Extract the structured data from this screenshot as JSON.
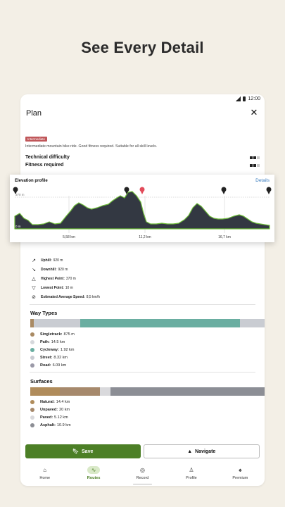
{
  "headline": "See Every Detail",
  "status": {
    "time": "12:00"
  },
  "screen": {
    "title": "Plan",
    "close_icon": "close-icon"
  },
  "tour": {
    "difficulty_badge": "Intermediate",
    "description": "Intermediate mountain bike ride. Good fitness required. Suitable for all skill levels.",
    "ratings": [
      {
        "label": "Technical difficulty",
        "level": 2,
        "max": 3
      },
      {
        "label": "Fitness required",
        "level": 2,
        "max": 3
      }
    ]
  },
  "elevation": {
    "title": "Elevation profile",
    "details_label": "Details",
    "y_top_label": "370 m",
    "y_bottom_label": "0 m",
    "x_ticks": [
      "5,58 km",
      "11,2 km",
      "16,7 km"
    ]
  },
  "stats": [
    {
      "icon": "arrow-up-right-icon",
      "glyph": "↗",
      "label": "Uphill:",
      "value": "920 m"
    },
    {
      "icon": "arrow-down-right-icon",
      "glyph": "↘",
      "label": "Downhill:",
      "value": "920 m"
    },
    {
      "icon": "triangle-up-icon",
      "glyph": "△",
      "label": "Highest Point:",
      "value": "370 m"
    },
    {
      "icon": "triangle-down-icon",
      "glyph": "▽",
      "label": "Lowest Point:",
      "value": "10 m"
    },
    {
      "icon": "speed-icon",
      "glyph": "⊘",
      "label": "Estimated Average Speed:",
      "value": "8,5 km/h"
    }
  ],
  "way_types": {
    "title": "Way Types",
    "segments": [
      {
        "color": "#a98a63",
        "share": 0.014
      },
      {
        "color": "#c9ccd2",
        "share": 0.2
      },
      {
        "color": "#6aaea1",
        "share": 0.68
      },
      {
        "color": "#c9ccd2",
        "share": 0.106
      }
    ],
    "items": [
      {
        "label": "Singletrack:",
        "value": "875 m",
        "color": "#a98a63"
      },
      {
        "label": "Path:",
        "value": "14.5 km",
        "color": "#d6d8dc"
      },
      {
        "label": "Cycleway:",
        "value": "1.92 km",
        "color": "#6aaea1"
      },
      {
        "label": "Street:",
        "value": "8.32 km",
        "color": "#c9ccd2"
      },
      {
        "label": "Road:",
        "value": "6.09 km",
        "color": "#9b9aa8"
      }
    ]
  },
  "surfaces": {
    "title": "Surfaces",
    "segments": [
      {
        "color": "#b08c5b",
        "share": 0.125
      },
      {
        "color": "#a6896c",
        "share": 0.172
      },
      {
        "color": "#d9d9dc",
        "share": 0.044
      },
      {
        "color": "#8c8e95",
        "share": 0.659
      }
    ],
    "items": [
      {
        "label": "Natural:",
        "value": "14.4 km",
        "color": "#b08c5b"
      },
      {
        "label": "Unpaved:",
        "value": "20 km",
        "color": "#a6896c"
      },
      {
        "label": "Paved:",
        "value": "5.12 km",
        "color": "#d9d9dc"
      },
      {
        "label": "Asphalt:",
        "value": "10.9 km",
        "color": "#8c8e95"
      }
    ]
  },
  "actions": {
    "save_label": "Save",
    "navigate_label": "Navigate"
  },
  "nav": [
    {
      "label": "Home",
      "icon": "home-icon",
      "glyph": "⌂",
      "active": false
    },
    {
      "label": "Routes",
      "icon": "routes-icon",
      "glyph": "∿",
      "active": true
    },
    {
      "label": "Record",
      "icon": "record-icon",
      "glyph": "◎",
      "active": false
    },
    {
      "label": "Profile",
      "icon": "profile-icon",
      "glyph": "♙",
      "active": false
    },
    {
      "label": "Premium",
      "icon": "premium-icon",
      "glyph": "♠",
      "active": false
    }
  ],
  "colors": {
    "accent": "#4c7f26",
    "badge": "#c0575a",
    "link": "#3b7dbf"
  }
}
